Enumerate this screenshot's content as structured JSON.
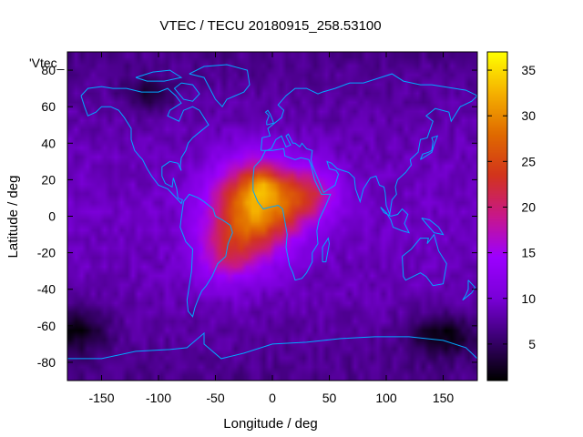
{
  "chart_data": {
    "type": "heatmap",
    "title": "VTEC / TECU 20180915_258.53100",
    "xlabel": "Longitude / deg",
    "ylabel": "Latitude / deg",
    "series_label": "'Vtec_",
    "xlim": [
      -180,
      180
    ],
    "ylim": [
      -90,
      90
    ],
    "x_ticks": [
      -150,
      -100,
      -50,
      0,
      50,
      100,
      150
    ],
    "y_ticks": [
      -80,
      -60,
      -40,
      -20,
      0,
      20,
      40,
      60,
      80
    ],
    "colorbar": {
      "range": [
        1,
        37
      ],
      "ticks": [
        5,
        10,
        15,
        20,
        25,
        30,
        35
      ],
      "palette": [
        "#000000",
        "#3a0070",
        "#7a00d8",
        "#9c00ff",
        "#c8178a",
        "#d2341c",
        "#e06a00",
        "#f5b000",
        "#ffff00"
      ]
    },
    "tec_blobs": [
      {
        "lon": -15,
        "lat": 5,
        "slon": 38,
        "slat": 24,
        "amp": 22
      },
      {
        "lon": 30,
        "lat": 12,
        "slon": 28,
        "slat": 14,
        "amp": 10
      },
      {
        "lon": -40,
        "lat": -22,
        "slon": 28,
        "slat": 16,
        "amp": 8
      },
      {
        "lon": -10,
        "lat": 18,
        "slon": 14,
        "slat": 8,
        "amp": 6
      }
    ],
    "tec_lows": [
      {
        "lon": -175,
        "lat": -62,
        "slon": 30,
        "slat": 14,
        "amp": 6
      },
      {
        "lon": 150,
        "lat": -65,
        "slon": 30,
        "slat": 12,
        "amp": 6
      },
      {
        "lon": -110,
        "lat": 66,
        "slon": 22,
        "slat": 10,
        "amp": 4
      }
    ],
    "background_tec": 8
  },
  "colors": {
    "coastline": "#00a8ff",
    "frame": "#000000"
  }
}
